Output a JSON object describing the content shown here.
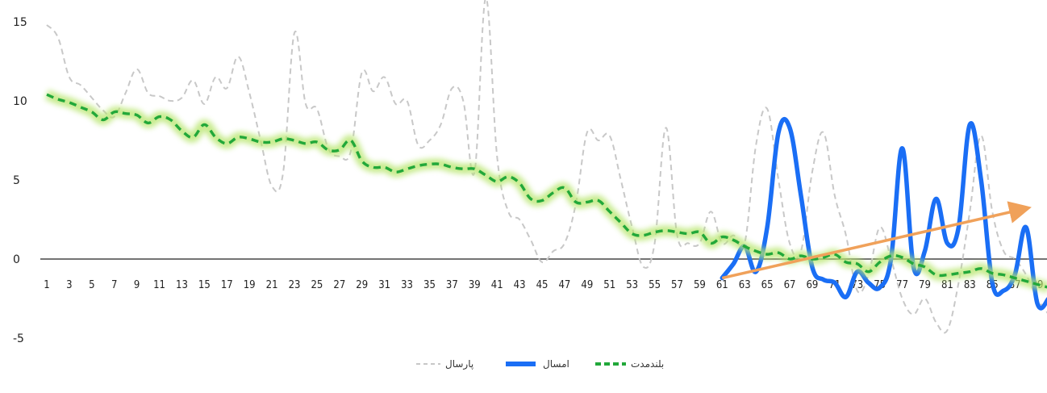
{
  "chart_data": {
    "type": "line",
    "title": "",
    "xlabel": "",
    "ylabel": "",
    "ylim": [
      -7,
      16
    ],
    "yticks": [
      -5,
      0,
      5,
      10,
      15
    ],
    "xlim": [
      1,
      90
    ],
    "xticks": [
      1,
      3,
      5,
      7,
      9,
      11,
      13,
      15,
      17,
      19,
      21,
      23,
      25,
      27,
      29,
      31,
      33,
      35,
      37,
      39,
      41,
      43,
      45,
      47,
      49,
      51,
      53,
      55,
      57,
      59,
      61,
      63,
      65,
      67,
      69,
      71,
      73,
      75,
      77,
      79,
      81,
      83,
      85,
      87,
      89
    ],
    "xtick_labels": [
      "1",
      "3",
      "5",
      "7",
      "9",
      "11",
      "13",
      "15",
      "17",
      "19",
      "21",
      "23",
      "25",
      "27",
      "29",
      "31",
      "33",
      "35",
      "37",
      "39",
      "41",
      "43",
      "45",
      "47",
      "49",
      "51",
      "53",
      "55",
      "57",
      "59",
      "61",
      "63",
      "65",
      "67",
      "69",
      "71",
      "73",
      "75",
      "77",
      "79",
      "81",
      "83",
      "85",
      "87",
      "89"
    ],
    "legend_position": "bottom",
    "grid": false,
    "colors": {
      "last_year": "#c8c8c8",
      "this_year": "#1a6ef5",
      "long_term": "#22a83a",
      "long_term_glow": "#b6e56a",
      "trend": "#f0a15a"
    },
    "legend": [
      "پارسال",
      "امسال",
      "بلندمدت"
    ],
    "series": [
      {
        "name": "پارسال",
        "style": "dashed-gray",
        "x": [
          1,
          2,
          3,
          4,
          5,
          6,
          7,
          8,
          9,
          10,
          11,
          12,
          13,
          14,
          15,
          16,
          17,
          18,
          19,
          20,
          21,
          22,
          23,
          24,
          25,
          26,
          27,
          28,
          29,
          30,
          31,
          32,
          33,
          34,
          35,
          36,
          37,
          38,
          39,
          40,
          41,
          42,
          43,
          44,
          45,
          46,
          47,
          48,
          49,
          50,
          51,
          52,
          53,
          54,
          55,
          56,
          57,
          58,
          59,
          60,
          61,
          62,
          63,
          64,
          65,
          66,
          67,
          68,
          69,
          70,
          71,
          72,
          73,
          74,
          75,
          76,
          77,
          78,
          79,
          80,
          81,
          82,
          83,
          84,
          85,
          86,
          87,
          88,
          89,
          90
        ],
        "values": [
          14.8,
          14.0,
          11.5,
          11.0,
          10.2,
          9.4,
          9.0,
          10.5,
          12.0,
          10.5,
          10.3,
          10.0,
          10.2,
          11.3,
          9.8,
          11.5,
          10.8,
          12.8,
          10.5,
          7.5,
          4.6,
          5.5,
          14.3,
          9.8,
          9.5,
          7.0,
          6.5,
          6.8,
          11.8,
          10.6,
          11.5,
          9.8,
          10.0,
          7.2,
          7.5,
          8.5,
          10.8,
          10.0,
          5.5,
          16.5,
          6.5,
          3.0,
          2.5,
          1.2,
          -0.2,
          0.5,
          1.0,
          3.5,
          8.0,
          7.5,
          7.8,
          5.0,
          2.0,
          -0.5,
          1.0,
          8.3,
          1.5,
          1.0,
          1.0,
          3.0,
          1.0,
          1.5,
          1.0,
          7.2,
          9.5,
          5.0,
          1.0,
          0.5,
          5.5,
          8.0,
          4.0,
          1.5,
          -2.0,
          -1.0,
          2.0,
          0.0,
          -2.5,
          -3.5,
          -2.5,
          -4.0,
          -4.5,
          -1.5,
          3.0,
          7.8,
          3.0,
          0.5,
          0.0,
          -1.0,
          -2.5,
          -3.5
        ]
      },
      {
        "name": "امسال",
        "style": "solid-blue",
        "x": [
          61,
          62,
          63,
          64,
          65,
          66,
          67,
          68,
          69,
          70,
          71,
          72,
          73,
          74,
          75,
          76,
          77,
          78,
          79,
          80,
          81,
          82,
          83,
          84,
          85,
          86,
          87,
          88,
          89,
          90
        ],
        "values": [
          -1.2,
          -0.3,
          0.8,
          -0.8,
          2.0,
          8.0,
          8.3,
          4.0,
          -0.5,
          -1.3,
          -1.5,
          -2.4,
          -0.8,
          -1.5,
          -1.8,
          0.0,
          7.0,
          -0.5,
          0.5,
          3.8,
          1.0,
          2.0,
          8.5,
          5.0,
          -1.5,
          -2.0,
          -1.0,
          2.0,
          -2.8,
          -2.5
        ]
      },
      {
        "name": "بلندمدت",
        "style": "dashed-green-glow",
        "x": [
          1,
          2,
          3,
          4,
          5,
          6,
          7,
          8,
          9,
          10,
          11,
          12,
          13,
          14,
          15,
          16,
          17,
          18,
          19,
          20,
          21,
          22,
          23,
          24,
          25,
          26,
          27,
          28,
          29,
          30,
          31,
          32,
          33,
          34,
          35,
          36,
          37,
          38,
          39,
          40,
          41,
          42,
          43,
          44,
          45,
          46,
          47,
          48,
          49,
          50,
          51,
          52,
          53,
          54,
          55,
          56,
          57,
          58,
          59,
          60,
          61,
          62,
          63,
          64,
          65,
          66,
          67,
          68,
          69,
          70,
          71,
          72,
          73,
          74,
          75,
          76,
          77,
          78,
          79,
          80,
          81,
          82,
          83,
          84,
          85,
          86,
          87,
          88,
          89,
          90
        ],
        "values": [
          10.4,
          10.1,
          9.9,
          9.6,
          9.3,
          8.8,
          9.3,
          9.2,
          9.1,
          8.6,
          9.0,
          8.8,
          8.1,
          7.7,
          8.5,
          7.7,
          7.3,
          7.7,
          7.6,
          7.4,
          7.4,
          7.6,
          7.5,
          7.3,
          7.4,
          6.9,
          6.9,
          7.5,
          6.2,
          5.8,
          5.8,
          5.5,
          5.7,
          5.9,
          6.0,
          6.0,
          5.8,
          5.7,
          5.7,
          5.3,
          4.9,
          5.2,
          4.8,
          3.8,
          3.7,
          4.2,
          4.5,
          3.6,
          3.6,
          3.7,
          3.0,
          2.3,
          1.6,
          1.5,
          1.7,
          1.8,
          1.7,
          1.6,
          1.7,
          1.0,
          1.4,
          1.2,
          0.8,
          0.5,
          0.3,
          0.4,
          0.0,
          0.2,
          0.0,
          0.1,
          0.3,
          -0.2,
          -0.3,
          -0.8,
          -0.2,
          0.2,
          0.1,
          -0.3,
          -0.5,
          -1.0,
          -1.0,
          -0.9,
          -0.8,
          -0.6,
          -0.9,
          -1.0,
          -1.2,
          -1.4,
          -1.6,
          -1.8
        ]
      },
      {
        "name": "trend",
        "style": "arrow-orange",
        "x": [
          61,
          88
        ],
        "values": [
          -1.2,
          3.2
        ]
      }
    ]
  }
}
